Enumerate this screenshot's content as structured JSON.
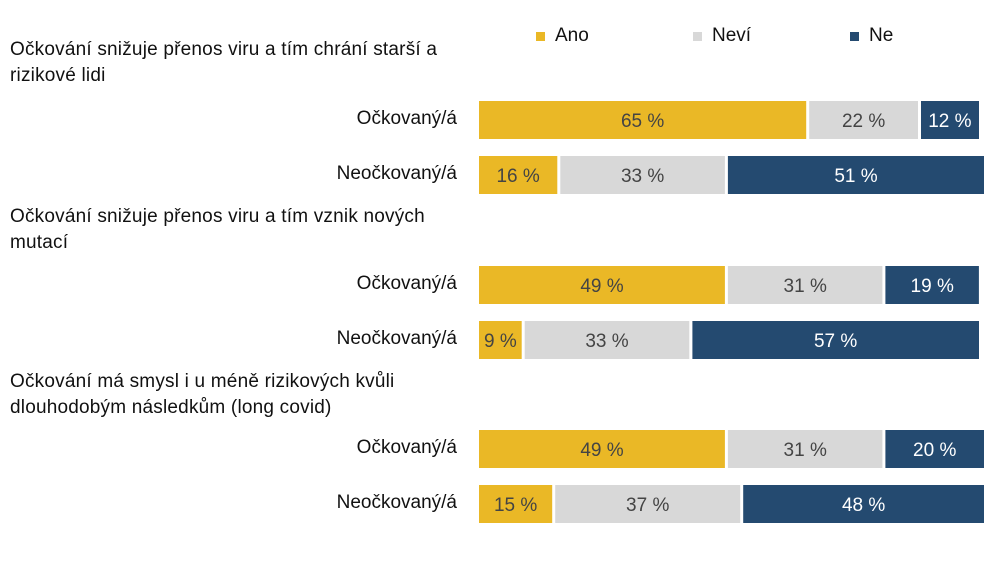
{
  "legend": [
    {
      "label": "Ano",
      "color": "#eab826"
    },
    {
      "label": "Neví",
      "color": "#d8d8d8"
    },
    {
      "label": "Ne",
      "color": "#244a70"
    }
  ],
  "chart_data": {
    "type": "bar",
    "orientation": "horizontal",
    "stacked": "100%",
    "value_suffix": " %",
    "xlim": [
      0,
      100
    ],
    "series_names": [
      "Ano",
      "Neví",
      "Ne"
    ],
    "groups": [
      {
        "title": "Očkování snižuje přenos viru a tím chrání starší a rizikové lidi",
        "rows": [
          {
            "label": "Očkovaný/á",
            "values": [
              65,
              22,
              12
            ]
          },
          {
            "label": "Neočkovaný/á",
            "values": [
              16,
              33,
              51
            ]
          }
        ]
      },
      {
        "title": "Očkování snižuje přenos viru a tím vznik nových mutací",
        "rows": [
          {
            "label": "Očkovaný/á",
            "values": [
              49,
              31,
              19
            ]
          },
          {
            "label": "Neočkovaný/á",
            "values": [
              9,
              33,
              57
            ]
          }
        ]
      },
      {
        "title": "Očkování má smysl i u méně rizikových kvůli dlouhodobým následkům (long covid)",
        "rows": [
          {
            "label": "Očkovaný/á",
            "values": [
              49,
              31,
              20
            ]
          },
          {
            "label": "Neočkovaný/á",
            "values": [
              15,
              37,
              48
            ]
          }
        ]
      }
    ]
  }
}
